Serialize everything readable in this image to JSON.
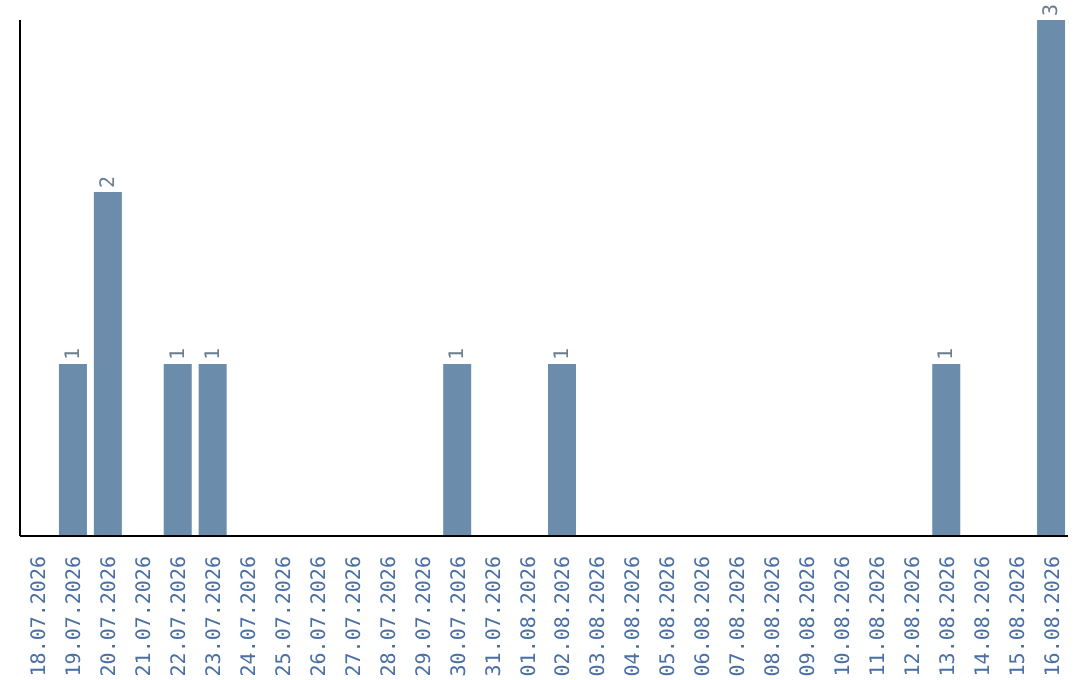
{
  "chart_data": {
    "type": "bar",
    "categories": [
      "18.07.2026",
      "19.07.2026",
      "20.07.2026",
      "21.07.2026",
      "22.07.2026",
      "23.07.2026",
      "24.07.2026",
      "25.07.2026",
      "26.07.2026",
      "27.07.2026",
      "28.07.2026",
      "29.07.2026",
      "30.07.2026",
      "31.07.2026",
      "01.08.2026",
      "02.08.2026",
      "03.08.2026",
      "04.08.2026",
      "05.08.2026",
      "06.08.2026",
      "07.08.2026",
      "08.08.2026",
      "09.08.2026",
      "10.08.2026",
      "11.08.2026",
      "12.08.2026",
      "13.08.2026",
      "14.08.2026",
      "15.08.2026",
      "16.08.2026"
    ],
    "values": [
      0,
      1,
      2,
      0,
      1,
      1,
      0,
      0,
      0,
      0,
      0,
      0,
      1,
      0,
      0,
      1,
      0,
      0,
      0,
      0,
      0,
      0,
      0,
      0,
      0,
      0,
      1,
      0,
      0,
      3
    ],
    "value_labels": [
      null,
      "1",
      "2",
      null,
      "1",
      "1",
      null,
      null,
      null,
      null,
      null,
      null,
      "1",
      null,
      null,
      "1",
      null,
      null,
      null,
      null,
      null,
      null,
      null,
      null,
      null,
      null,
      "1",
      null,
      null,
      "3"
    ],
    "color": "#6b8cab",
    "ylim": [
      0,
      3
    ],
    "tick_labels": "x",
    "grid": false,
    "legend": false
  }
}
